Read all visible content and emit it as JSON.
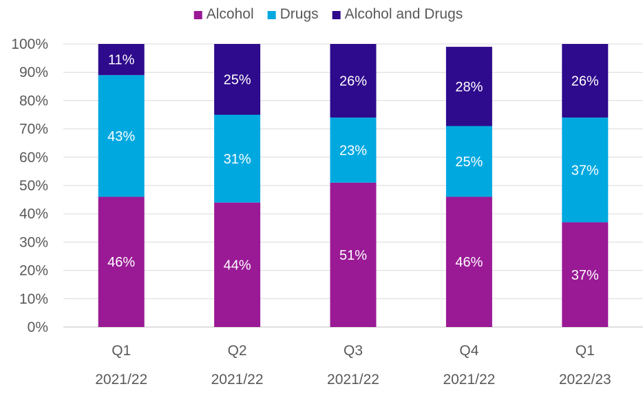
{
  "chart_data": {
    "type": "bar",
    "stacked": true,
    "categories": [
      [
        "Q1",
        "2021/22"
      ],
      [
        "Q2",
        "2021/22"
      ],
      [
        "Q3",
        "2021/22"
      ],
      [
        "Q4",
        "2021/22"
      ],
      [
        "Q1",
        "2022/23"
      ]
    ],
    "series": [
      {
        "name": "Alcohol",
        "color": "#9A1A96",
        "values": [
          46,
          44,
          51,
          46,
          37
        ],
        "labels": [
          "46%",
          "44%",
          "51%",
          "46%",
          "37%"
        ]
      },
      {
        "name": "Drugs",
        "color": "#00A8E0",
        "values": [
          43,
          31,
          23,
          25,
          37
        ],
        "labels": [
          "43%",
          "31%",
          "23%",
          "25%",
          "37%"
        ]
      },
      {
        "name": "Alcohol and Drugs",
        "color": "#2E0A8C",
        "values": [
          11,
          25,
          26,
          28,
          26
        ],
        "labels": [
          "11%",
          "25%",
          "26%",
          "28%",
          "26%"
        ]
      }
    ],
    "ylim": [
      0,
      100
    ],
    "yticks": [
      "0%",
      "10%",
      "20%",
      "30%",
      "40%",
      "50%",
      "60%",
      "70%",
      "80%",
      "90%",
      "100%"
    ],
    "grid": true,
    "legend_position": "top",
    "xlabel": "",
    "ylabel": "",
    "title": ""
  }
}
